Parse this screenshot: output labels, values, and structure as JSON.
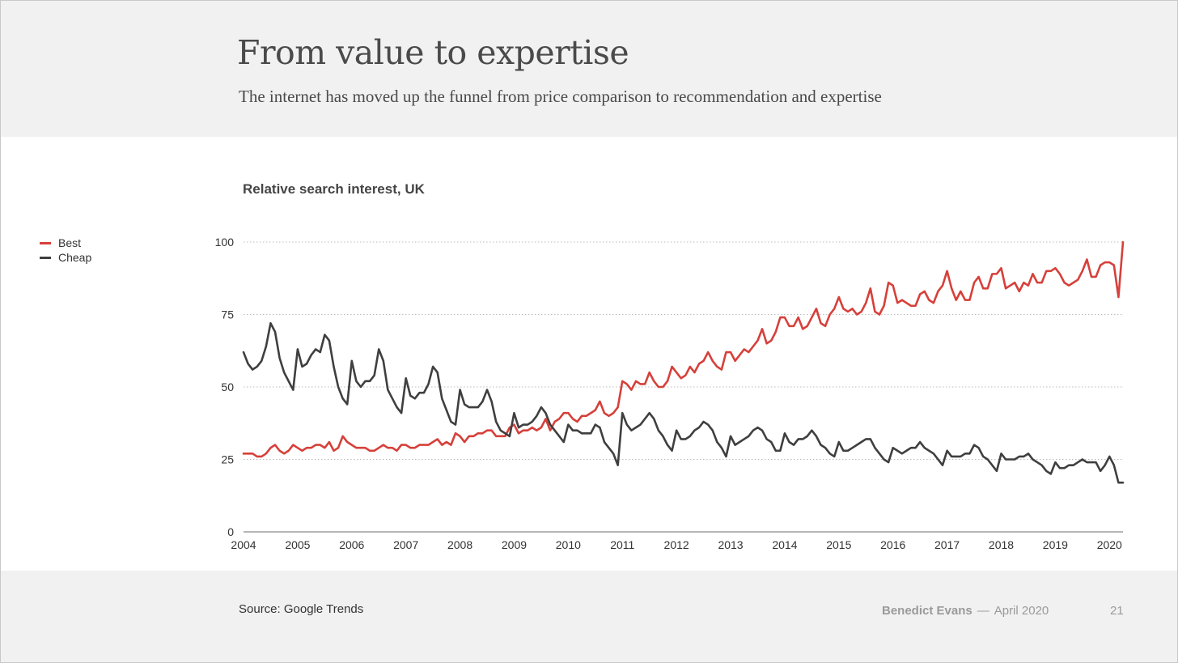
{
  "slide": {
    "title": "From value to expertise",
    "subtitle": "The internet has moved up the funnel from price comparison to recommendation and expertise",
    "source": "Source: Google Trends",
    "author": "Benedict Evans",
    "separator": "—",
    "date": "April 2020",
    "page_number": "21"
  },
  "legend": [
    {
      "label": "Best",
      "color": "#d6403a"
    },
    {
      "label": "Cheap",
      "color": "#3f3f3f"
    }
  ],
  "chart_data": {
    "type": "line",
    "title": "Relative search interest, UK",
    "xlabel": "",
    "ylabel": "",
    "ylim": [
      0,
      100
    ],
    "xlim": [
      2004,
      2020.25
    ],
    "yticks": [
      0,
      25,
      50,
      75,
      100
    ],
    "xticks": [
      "2004",
      "2005",
      "2006",
      "2007",
      "2008",
      "2009",
      "2010",
      "2011",
      "2012",
      "2013",
      "2014",
      "2015",
      "2016",
      "2017",
      "2018",
      "2019",
      "2020"
    ],
    "grid": "horizontal dotted",
    "legend_position": "left",
    "x_start": "2004-01",
    "frequency": "monthly",
    "series": [
      {
        "name": "Best",
        "color": "#d6403a",
        "values": [
          27,
          27,
          27,
          26,
          26,
          27,
          29,
          30,
          28,
          27,
          28,
          30,
          29,
          28,
          29,
          29,
          30,
          30,
          29,
          31,
          28,
          29,
          33,
          31,
          30,
          29,
          29,
          29,
          28,
          28,
          29,
          30,
          29,
          29,
          28,
          30,
          30,
          29,
          29,
          30,
          30,
          30,
          31,
          32,
          30,
          31,
          30,
          34,
          33,
          31,
          33,
          33,
          34,
          34,
          35,
          35,
          33,
          33,
          33,
          36,
          37,
          34,
          35,
          35,
          36,
          35,
          36,
          39,
          35,
          38,
          39,
          41,
          41,
          39,
          38,
          40,
          40,
          41,
          42,
          45,
          41,
          40,
          41,
          43,
          52,
          51,
          49,
          52,
          51,
          51,
          55,
          52,
          50,
          50,
          52,
          57,
          55,
          53,
          54,
          57,
          55,
          58,
          59,
          62,
          59,
          57,
          56,
          62,
          62,
          59,
          61,
          63,
          62,
          64,
          66,
          70,
          65,
          66,
          69,
          74,
          74,
          71,
          71,
          74,
          70,
          71,
          74,
          77,
          72,
          71,
          75,
          77,
          81,
          77,
          76,
          77,
          75,
          76,
          79,
          84,
          76,
          75,
          78,
          86,
          85,
          79,
          80,
          79,
          78,
          78,
          82,
          83,
          80,
          79,
          83,
          85,
          90,
          84,
          80,
          83,
          80,
          80,
          86,
          88,
          84,
          84,
          89,
          89,
          91,
          84,
          85,
          86,
          83,
          86,
          85,
          89,
          86,
          86,
          90,
          90,
          91,
          89,
          86,
          85,
          86,
          87,
          90,
          94,
          88,
          88,
          92,
          93,
          93,
          92,
          81,
          100
        ]
      },
      {
        "name": "Cheap",
        "color": "#3f3f3f",
        "values": [
          62,
          58,
          56,
          57,
          59,
          64,
          72,
          69,
          60,
          55,
          52,
          49,
          63,
          57,
          58,
          61,
          63,
          62,
          68,
          66,
          57,
          50,
          46,
          44,
          59,
          52,
          50,
          52,
          52,
          54,
          63,
          59,
          49,
          46,
          43,
          41,
          53,
          47,
          46,
          48,
          48,
          51,
          57,
          55,
          46,
          42,
          38,
          37,
          49,
          44,
          43,
          43,
          43,
          45,
          49,
          45,
          38,
          35,
          34,
          33,
          41,
          36,
          37,
          37,
          38,
          40,
          43,
          41,
          37,
          35,
          33,
          31,
          37,
          35,
          35,
          34,
          34,
          34,
          37,
          36,
          31,
          29,
          27,
          23,
          41,
          37,
          35,
          36,
          37,
          39,
          41,
          39,
          35,
          33,
          30,
          28,
          35,
          32,
          32,
          33,
          35,
          36,
          38,
          37,
          35,
          31,
          29,
          26,
          33,
          30,
          31,
          32,
          33,
          35,
          36,
          35,
          32,
          31,
          28,
          28,
          34,
          31,
          30,
          32,
          32,
          33,
          35,
          33,
          30,
          29,
          27,
          26,
          31,
          28,
          28,
          29,
          30,
          31,
          32,
          32,
          29,
          27,
          25,
          24,
          29,
          28,
          27,
          28,
          29,
          29,
          31,
          29,
          28,
          27,
          25,
          23,
          28,
          26,
          26,
          26,
          27,
          27,
          30,
          29,
          26,
          25,
          23,
          21,
          27,
          25,
          25,
          25,
          26,
          26,
          27,
          25,
          24,
          23,
          21,
          20,
          24,
          22,
          22,
          23,
          23,
          24,
          25,
          24,
          24,
          24,
          21,
          23,
          26,
          23,
          17,
          17
        ]
      }
    ]
  }
}
